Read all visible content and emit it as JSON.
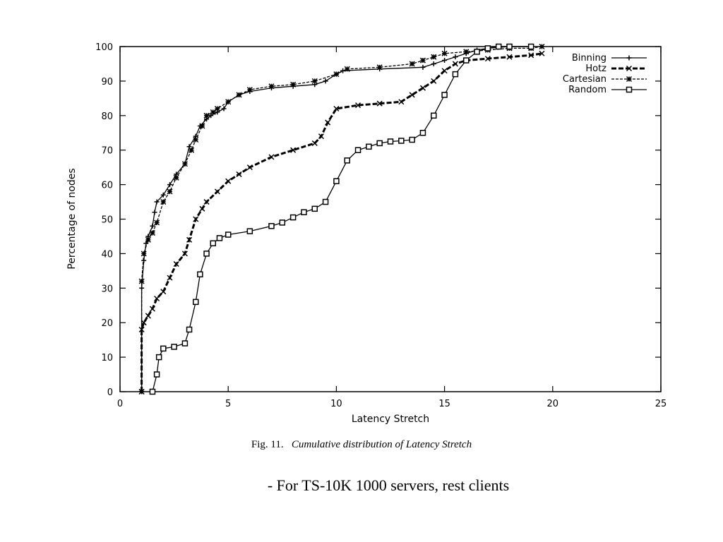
{
  "chart_data": {
    "type": "line",
    "title": "",
    "xlabel": "Latency Stretch",
    "ylabel": "Percentage of nodes",
    "xlim": [
      0,
      25
    ],
    "ylim": [
      0,
      100
    ],
    "xticks": [
      0,
      5,
      10,
      15,
      20,
      25
    ],
    "yticks": [
      0,
      10,
      20,
      30,
      40,
      50,
      60,
      70,
      80,
      90,
      100
    ],
    "grid": false,
    "legend_position": "top-right",
    "series": [
      {
        "name": "Binning",
        "marker": "plus",
        "dash": "solid",
        "x": [
          1.0,
          1.0,
          1.1,
          1.2,
          1.3,
          1.5,
          1.6,
          1.7,
          2.0,
          2.3,
          2.6,
          3.0,
          3.2,
          3.5,
          3.7,
          4.0,
          4.2,
          4.5,
          4.8,
          5.0,
          5.5,
          6.0,
          7.0,
          8.0,
          9.0,
          9.5,
          10.0,
          10.3,
          12.0,
          14.0,
          14.5,
          15.0,
          15.5,
          16.0,
          16.5,
          17.0,
          18.0,
          19.0
        ],
        "y": [
          0,
          30,
          38,
          43,
          45,
          48,
          52,
          55,
          57,
          60,
          63,
          66,
          71,
          74,
          77,
          79,
          80,
          81,
          82,
          84,
          86,
          87,
          88,
          88.5,
          89,
          90,
          92,
          93,
          93.5,
          94,
          95,
          96,
          97,
          98,
          99,
          99.5,
          100,
          100
        ]
      },
      {
        "name": "Hotz",
        "marker": "x",
        "dash": "dashed-bold",
        "x": [
          1.0,
          1.0,
          1.1,
          1.3,
          1.5,
          1.7,
          2.0,
          2.3,
          2.6,
          3.0,
          3.2,
          3.5,
          3.8,
          4.0,
          4.5,
          5.0,
          5.5,
          6.0,
          7.0,
          8.0,
          9.0,
          9.3,
          9.6,
          10.0,
          11.0,
          12.0,
          13.0,
          13.5,
          14.0,
          14.5,
          15.0,
          15.5,
          16.0,
          17.0,
          18.0,
          19.0,
          19.5
        ],
        "y": [
          0,
          18,
          20,
          22,
          24,
          27,
          29,
          33,
          37,
          40,
          44,
          50,
          53,
          55,
          58,
          61,
          63,
          65,
          68,
          70,
          72,
          74,
          78,
          82,
          83,
          83.5,
          84,
          86,
          88,
          90,
          93,
          95,
          96,
          96.5,
          97,
          97.5,
          98
        ]
      },
      {
        "name": "Cartesian",
        "marker": "star",
        "dash": "dashed-thin",
        "x": [
          1.0,
          1.0,
          1.1,
          1.3,
          1.5,
          1.7,
          2.0,
          2.3,
          2.6,
          3.0,
          3.3,
          3.5,
          3.8,
          4.0,
          4.3,
          4.5,
          5.0,
          5.5,
          6.0,
          7.0,
          8.0,
          9.0,
          10.0,
          10.5,
          12.0,
          13.5,
          14.0,
          14.5,
          15.0,
          16.0,
          17.0,
          18.0,
          19.0,
          19.5
        ],
        "y": [
          0,
          32,
          40,
          44,
          46,
          49,
          55,
          58,
          62,
          66,
          70,
          73,
          77,
          80,
          81,
          82,
          84,
          86,
          87.5,
          88.5,
          89,
          90,
          92,
          93.5,
          94,
          95,
          96,
          97,
          98,
          98.5,
          99,
          99.5,
          99.5,
          100
        ]
      },
      {
        "name": "Random",
        "marker": "square",
        "dash": "solid",
        "x": [
          1.5,
          1.7,
          1.8,
          2.0,
          2.5,
          3.0,
          3.2,
          3.5,
          3.7,
          4.0,
          4.3,
          4.6,
          5.0,
          6.0,
          7.0,
          7.5,
          8.0,
          8.5,
          9.0,
          9.5,
          10.0,
          10.5,
          11.0,
          11.5,
          12.0,
          12.5,
          13.0,
          13.5,
          14.0,
          14.5,
          15.0,
          15.5,
          16.0,
          16.5,
          17.0,
          17.5,
          18.0,
          19.0
        ],
        "y": [
          0,
          5,
          10,
          12.5,
          13,
          14,
          18,
          26,
          34,
          40,
          43,
          44.5,
          45.5,
          46.5,
          48,
          49,
          50.5,
          52,
          53,
          55,
          61,
          67,
          70,
          71,
          72,
          72.5,
          72.7,
          73,
          75,
          80,
          86,
          92,
          96,
          98.5,
          99.5,
          100,
          100,
          100
        ]
      }
    ]
  },
  "caption": {
    "prefix": "Fig. 11.",
    "text": "Cumulative distribution of Latency Stretch"
  },
  "note": "- For TS-10K 1000 servers, rest clients"
}
